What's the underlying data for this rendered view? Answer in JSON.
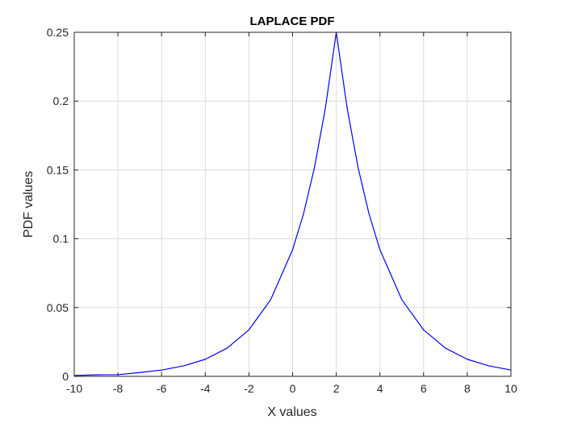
{
  "chart_data": {
    "type": "line",
    "title": "LAPLACE PDF",
    "xlabel": "X values",
    "ylabel": "PDF values",
    "xlim": [
      -10,
      10
    ],
    "ylim": [
      0,
      0.25
    ],
    "xticks": [
      -10,
      -8,
      -6,
      -4,
      -2,
      0,
      2,
      4,
      6,
      8,
      10
    ],
    "yticks": [
      0,
      0.05,
      0.1,
      0.15,
      0.2,
      0.25
    ],
    "xtick_labels": [
      "-10",
      "-8",
      "-6",
      "-4",
      "-2",
      "0",
      "2",
      "4",
      "6",
      "8",
      "10"
    ],
    "ytick_labels": [
      "0",
      "0.05",
      "0.1",
      "0.15",
      "0.2",
      "0.25"
    ],
    "grid": true,
    "series": [
      {
        "color": "#0000ff",
        "x": [
          -10,
          -9,
          -8,
          -7,
          -6,
          -5,
          -4,
          -3,
          -2,
          -1,
          0,
          0.5,
          1,
          1.5,
          2,
          2.5,
          3,
          3.5,
          4,
          5,
          6,
          7,
          8,
          9,
          10
        ],
        "y": [
          0.0006,
          0.0011,
          0.0012,
          0.0028,
          0.0046,
          0.0076,
          0.0124,
          0.0205,
          0.0338,
          0.0558,
          0.092,
          0.1181,
          0.1516,
          0.1947,
          0.25,
          0.1947,
          0.1516,
          0.1181,
          0.092,
          0.0558,
          0.0338,
          0.0205,
          0.0124,
          0.0076,
          0.0046
        ]
      }
    ]
  }
}
